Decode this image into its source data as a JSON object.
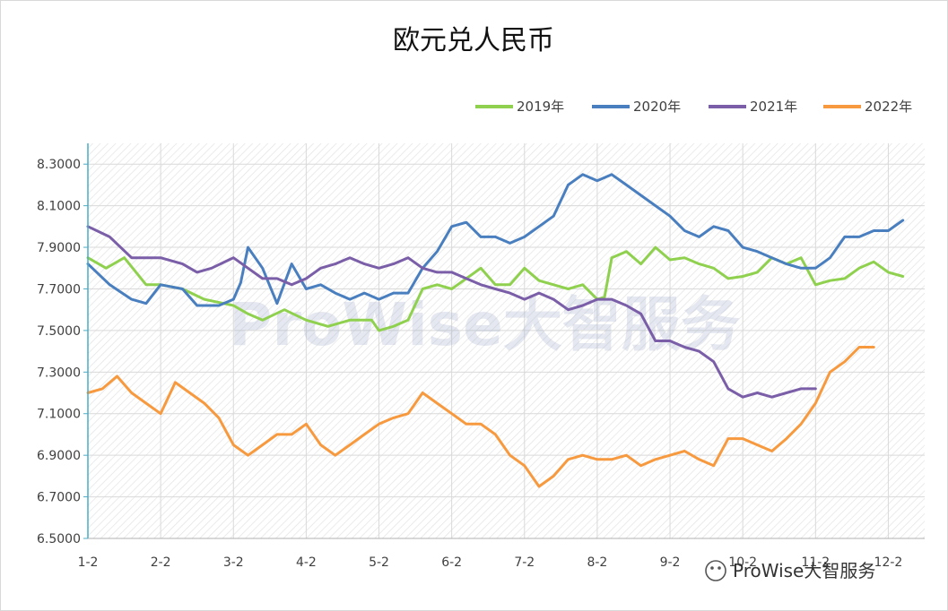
{
  "chart_data": {
    "type": "line",
    "title": "欧元兑人民币",
    "xlabel": "",
    "ylabel": "",
    "x_ticks": [
      "1-2",
      "2-2",
      "3-2",
      "4-2",
      "5-2",
      "6-2",
      "7-2",
      "8-2",
      "9-2",
      "10-2",
      "11-2",
      "12-2"
    ],
    "y_ticks": [
      "6.5000",
      "6.7000",
      "6.9000",
      "7.1000",
      "7.3000",
      "7.5000",
      "7.7000",
      "7.9000",
      "8.1000",
      "8.3000"
    ],
    "ylim": [
      6.5,
      8.4
    ],
    "grid": true,
    "legend_position": "top-right",
    "series": [
      {
        "name": "2019年",
        "color": "#8fd14f",
        "points": [
          [
            0,
            7.85
          ],
          [
            0.25,
            7.8
          ],
          [
            0.5,
            7.85
          ],
          [
            0.8,
            7.72
          ],
          [
            1,
            7.72
          ],
          [
            1.3,
            7.7
          ],
          [
            1.6,
            7.65
          ],
          [
            2,
            7.62
          ],
          [
            2.2,
            7.58
          ],
          [
            2.4,
            7.55
          ],
          [
            2.7,
            7.6
          ],
          [
            3,
            7.55
          ],
          [
            3.3,
            7.52
          ],
          [
            3.6,
            7.55
          ],
          [
            3.9,
            7.55
          ],
          [
            4,
            7.5
          ],
          [
            4.2,
            7.52
          ],
          [
            4.4,
            7.55
          ],
          [
            4.6,
            7.7
          ],
          [
            4.8,
            7.72
          ],
          [
            5,
            7.7
          ],
          [
            5.2,
            7.75
          ],
          [
            5.4,
            7.8
          ],
          [
            5.6,
            7.72
          ],
          [
            5.8,
            7.72
          ],
          [
            6,
            7.8
          ],
          [
            6.2,
            7.74
          ],
          [
            6.4,
            7.72
          ],
          [
            6.6,
            7.7
          ],
          [
            6.8,
            7.72
          ],
          [
            7,
            7.65
          ],
          [
            7.1,
            7.66
          ],
          [
            7.2,
            7.85
          ],
          [
            7.4,
            7.88
          ],
          [
            7.6,
            7.82
          ],
          [
            7.8,
            7.9
          ],
          [
            8,
            7.84
          ],
          [
            8.2,
            7.85
          ],
          [
            8.4,
            7.82
          ],
          [
            8.6,
            7.8
          ],
          [
            8.8,
            7.75
          ],
          [
            9,
            7.76
          ],
          [
            9.2,
            7.78
          ],
          [
            9.4,
            7.85
          ],
          [
            9.6,
            7.82
          ],
          [
            9.8,
            7.85
          ],
          [
            10,
            7.72
          ],
          [
            10.2,
            7.74
          ],
          [
            10.4,
            7.75
          ],
          [
            10.6,
            7.8
          ],
          [
            10.8,
            7.83
          ],
          [
            11,
            7.78
          ],
          [
            11.2,
            7.76
          ]
        ]
      },
      {
        "name": "2020年",
        "color": "#4a7fbf",
        "points": [
          [
            0,
            7.82
          ],
          [
            0.3,
            7.72
          ],
          [
            0.6,
            7.65
          ],
          [
            0.8,
            7.63
          ],
          [
            1,
            7.72
          ],
          [
            1.3,
            7.7
          ],
          [
            1.5,
            7.62
          ],
          [
            1.8,
            7.62
          ],
          [
            2,
            7.65
          ],
          [
            2.1,
            7.73
          ],
          [
            2.2,
            7.9
          ],
          [
            2.4,
            7.8
          ],
          [
            2.6,
            7.63
          ],
          [
            2.8,
            7.82
          ],
          [
            3,
            7.7
          ],
          [
            3.2,
            7.72
          ],
          [
            3.4,
            7.68
          ],
          [
            3.6,
            7.65
          ],
          [
            3.8,
            7.68
          ],
          [
            4,
            7.65
          ],
          [
            4.2,
            7.68
          ],
          [
            4.4,
            7.68
          ],
          [
            4.6,
            7.8
          ],
          [
            4.8,
            7.88
          ],
          [
            5,
            8.0
          ],
          [
            5.2,
            8.02
          ],
          [
            5.4,
            7.95
          ],
          [
            5.6,
            7.95
          ],
          [
            5.8,
            7.92
          ],
          [
            6,
            7.95
          ],
          [
            6.2,
            8.0
          ],
          [
            6.4,
            8.05
          ],
          [
            6.6,
            8.2
          ],
          [
            6.8,
            8.25
          ],
          [
            7,
            8.22
          ],
          [
            7.2,
            8.25
          ],
          [
            7.4,
            8.2
          ],
          [
            7.6,
            8.15
          ],
          [
            7.8,
            8.1
          ],
          [
            8,
            8.05
          ],
          [
            8.2,
            7.98
          ],
          [
            8.4,
            7.95
          ],
          [
            8.6,
            8.0
          ],
          [
            8.8,
            7.98
          ],
          [
            9,
            7.9
          ],
          [
            9.2,
            7.88
          ],
          [
            9.4,
            7.85
          ],
          [
            9.6,
            7.82
          ],
          [
            9.8,
            7.8
          ],
          [
            10,
            7.8
          ],
          [
            10.2,
            7.85
          ],
          [
            10.4,
            7.95
          ],
          [
            10.6,
            7.95
          ],
          [
            10.8,
            7.98
          ],
          [
            11,
            7.98
          ],
          [
            11.2,
            8.03
          ]
        ]
      },
      {
        "name": "2021年",
        "color": "#7b5ea8",
        "points": [
          [
            0,
            8.0
          ],
          [
            0.3,
            7.95
          ],
          [
            0.6,
            7.85
          ],
          [
            0.8,
            7.85
          ],
          [
            1,
            7.85
          ],
          [
            1.3,
            7.82
          ],
          [
            1.5,
            7.78
          ],
          [
            1.7,
            7.8
          ],
          [
            2,
            7.85
          ],
          [
            2.2,
            7.8
          ],
          [
            2.4,
            7.75
          ],
          [
            2.6,
            7.75
          ],
          [
            2.8,
            7.72
          ],
          [
            3,
            7.75
          ],
          [
            3.2,
            7.8
          ],
          [
            3.4,
            7.82
          ],
          [
            3.6,
            7.85
          ],
          [
            3.8,
            7.82
          ],
          [
            4,
            7.8
          ],
          [
            4.2,
            7.82
          ],
          [
            4.4,
            7.85
          ],
          [
            4.6,
            7.8
          ],
          [
            4.8,
            7.78
          ],
          [
            5,
            7.78
          ],
          [
            5.2,
            7.75
          ],
          [
            5.4,
            7.72
          ],
          [
            5.6,
            7.7
          ],
          [
            5.8,
            7.68
          ],
          [
            6,
            7.65
          ],
          [
            6.2,
            7.68
          ],
          [
            6.4,
            7.65
          ],
          [
            6.6,
            7.6
          ],
          [
            6.8,
            7.62
          ],
          [
            7,
            7.65
          ],
          [
            7.2,
            7.65
          ],
          [
            7.4,
            7.62
          ],
          [
            7.6,
            7.58
          ],
          [
            7.8,
            7.45
          ],
          [
            8,
            7.45
          ],
          [
            8.2,
            7.42
          ],
          [
            8.4,
            7.4
          ],
          [
            8.6,
            7.35
          ],
          [
            8.8,
            7.22
          ],
          [
            9,
            7.18
          ],
          [
            9.2,
            7.2
          ],
          [
            9.4,
            7.18
          ],
          [
            9.6,
            7.2
          ],
          [
            9.8,
            7.22
          ],
          [
            10,
            7.22
          ]
        ]
      },
      {
        "name": "2022年",
        "color": "#f79a3f",
        "points": [
          [
            0,
            7.2
          ],
          [
            0.2,
            7.22
          ],
          [
            0.4,
            7.28
          ],
          [
            0.6,
            7.2
          ],
          [
            0.8,
            7.15
          ],
          [
            1,
            7.1
          ],
          [
            1.2,
            7.25
          ],
          [
            1.4,
            7.2
          ],
          [
            1.6,
            7.15
          ],
          [
            1.8,
            7.08
          ],
          [
            2,
            6.95
          ],
          [
            2.2,
            6.9
          ],
          [
            2.4,
            6.95
          ],
          [
            2.6,
            7.0
          ],
          [
            2.8,
            7.0
          ],
          [
            3,
            7.05
          ],
          [
            3.2,
            6.95
          ],
          [
            3.4,
            6.9
          ],
          [
            3.6,
            6.95
          ],
          [
            3.8,
            7.0
          ],
          [
            4,
            7.05
          ],
          [
            4.2,
            7.08
          ],
          [
            4.4,
            7.1
          ],
          [
            4.6,
            7.2
          ],
          [
            4.8,
            7.15
          ],
          [
            5,
            7.1
          ],
          [
            5.2,
            7.05
          ],
          [
            5.4,
            7.05
          ],
          [
            5.6,
            7.0
          ],
          [
            5.8,
            6.9
          ],
          [
            6,
            6.85
          ],
          [
            6.2,
            6.75
          ],
          [
            6.4,
            6.8
          ],
          [
            6.6,
            6.88
          ],
          [
            6.8,
            6.9
          ],
          [
            7,
            6.88
          ],
          [
            7.2,
            6.88
          ],
          [
            7.4,
            6.9
          ],
          [
            7.6,
            6.85
          ],
          [
            7.8,
            6.88
          ],
          [
            8,
            6.9
          ],
          [
            8.2,
            6.92
          ],
          [
            8.4,
            6.88
          ],
          [
            8.6,
            6.85
          ],
          [
            8.8,
            6.98
          ],
          [
            9,
            6.98
          ],
          [
            9.2,
            6.95
          ],
          [
            9.4,
            6.92
          ],
          [
            9.6,
            6.98
          ],
          [
            9.8,
            7.05
          ],
          [
            10,
            7.15
          ],
          [
            10.2,
            7.3
          ],
          [
            10.4,
            7.35
          ],
          [
            10.6,
            7.42
          ],
          [
            10.8,
            7.42
          ]
        ]
      }
    ]
  },
  "watermark": {
    "text": "ProWise大智服务"
  },
  "brand": {
    "text": "ProWise大智服务",
    "icon": "wechat-icon"
  }
}
